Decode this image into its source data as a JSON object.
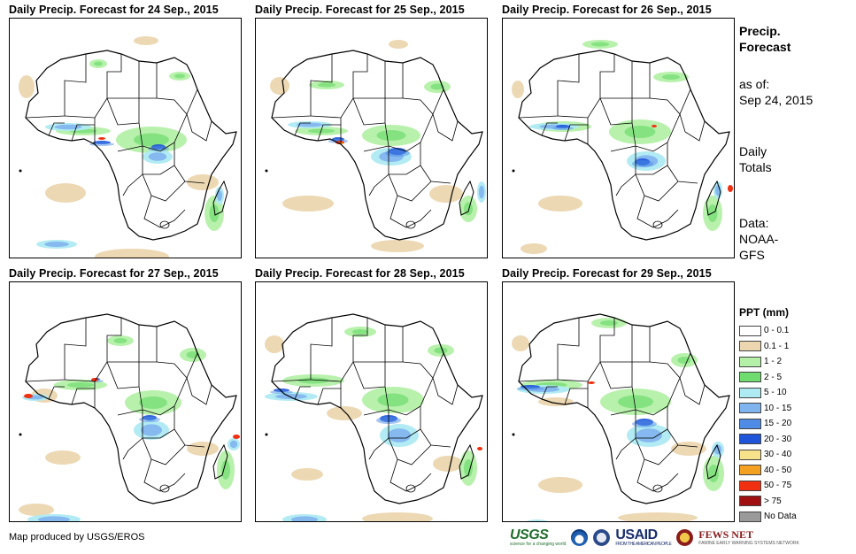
{
  "panels": [
    {
      "title": "Daily Precip. Forecast for 24  Sep., 2015"
    },
    {
      "title": "Daily Precip. Forecast for 25  Sep., 2015"
    },
    {
      "title": "Daily Precip. Forecast for 26  Sep., 2015"
    },
    {
      "title": "Daily Precip. Forecast for 27  Sep., 2015"
    },
    {
      "title": "Daily Precip. Forecast for 28  Sep., 2015"
    },
    {
      "title": "Daily Precip. Forecast for 29  Sep., 2015"
    }
  ],
  "side": {
    "title_line1": "Precip.",
    "title_line2": "Forecast",
    "asof_line1": "as of:",
    "asof_line2": "Sep 24, 2015",
    "totals_line1": "Daily",
    "totals_line2": "Totals",
    "data_line1": "Data:",
    "data_line2": "NOAA-",
    "data_line3": "GFS"
  },
  "legend": {
    "title": "PPT (mm)",
    "items": [
      {
        "label": "0 - 0.1",
        "color": "#ffffff"
      },
      {
        "label": "0.1 - 1",
        "color": "#ecd6b0"
      },
      {
        "label": "1 - 2",
        "color": "#b4f0a8"
      },
      {
        "label": "2 - 5",
        "color": "#6fdc6f"
      },
      {
        "label": "5 - 10",
        "color": "#aeeaf2"
      },
      {
        "label": "10 - 15",
        "color": "#7fb4ee"
      },
      {
        "label": "15 - 20",
        "color": "#4e8ce6"
      },
      {
        "label": "20 - 30",
        "color": "#1f55d8"
      },
      {
        "label": "30 - 40",
        "color": "#f6e28a"
      },
      {
        "label": "40 - 50",
        "color": "#f4a020"
      },
      {
        "label": "50 - 75",
        "color": "#f03010"
      },
      {
        "label": "> 75",
        "color": "#a01010"
      },
      {
        "label": "No Data",
        "color": "#9a9a9a"
      }
    ]
  },
  "credit": "Map produced by USGS/EROS",
  "logos": {
    "usgs": "USGS",
    "usgs_tagline": "science for a changing world",
    "usaid": "USAID",
    "usaid_tagline": "FROM THE AMERICAN PEOPLE",
    "fews": "FEWS NET",
    "fews_tagline": "FAMINE EARLY WARNING SYSTEMS NETWORK"
  }
}
